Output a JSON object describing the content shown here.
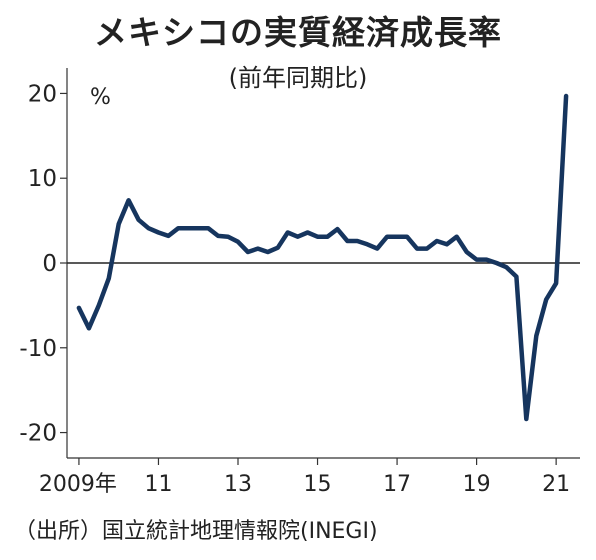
{
  "title": "メキシコの実質経済成長率",
  "subtitle": "(前年同期比)",
  "source": "（出所）国立統計地理情報院(INEGI)",
  "colors": {
    "line": "#16355e",
    "axis": "#333333",
    "zero_line": "#222222",
    "text": "#222222"
  },
  "chart_data": {
    "type": "line",
    "title": "メキシコの実質経済成長率",
    "subtitle": "(前年同期比)",
    "unit_label": "%",
    "xlabel": "",
    "ylabel": "",
    "ylim": [
      -23,
      23
    ],
    "xlim": [
      2008.7,
      2021.6
    ],
    "y_ticks": [
      20,
      10,
      0,
      -10,
      -20
    ],
    "y_tick_labels": [
      "20",
      "10",
      "0",
      "-10",
      "-20"
    ],
    "x_ticks": [
      2009,
      2011,
      2013,
      2015,
      2017,
      2019,
      2021
    ],
    "x_tick_labels": [
      "2009年",
      "11",
      "13",
      "15",
      "17",
      "19",
      "21"
    ],
    "zero_line": true,
    "grid": false,
    "series": [
      {
        "name": "",
        "x": [
          2009.0,
          2009.25,
          2009.5,
          2009.75,
          2010.0,
          2010.25,
          2010.5,
          2010.75,
          2011.0,
          2011.25,
          2011.5,
          2011.75,
          2012.0,
          2012.25,
          2012.5,
          2012.75,
          2013.0,
          2013.25,
          2013.5,
          2013.75,
          2014.0,
          2014.25,
          2014.5,
          2014.75,
          2015.0,
          2015.25,
          2015.5,
          2015.75,
          2016.0,
          2016.25,
          2016.5,
          2016.75,
          2017.0,
          2017.25,
          2017.5,
          2017.75,
          2018.0,
          2018.25,
          2018.5,
          2018.75,
          2019.0,
          2019.25,
          2019.5,
          2019.75,
          2020.0,
          2020.25,
          2020.5,
          2020.75,
          2021.0,
          2021.25
        ],
        "y": [
          -5.3,
          -7.7,
          -5.0,
          -1.8,
          4.6,
          7.4,
          5.1,
          4.1,
          3.6,
          3.2,
          4.1,
          4.1,
          4.1,
          4.1,
          3.2,
          3.1,
          2.5,
          1.3,
          1.7,
          1.3,
          1.8,
          3.6,
          3.1,
          3.6,
          3.1,
          3.1,
          4.0,
          2.6,
          2.6,
          2.2,
          1.7,
          3.1,
          3.1,
          3.1,
          1.7,
          1.7,
          2.6,
          2.2,
          3.1,
          1.3,
          0.4,
          0.4,
          0.0,
          -0.5,
          -1.6,
          -18.4,
          -8.6,
          -4.3,
          -2.4,
          19.7
        ]
      }
    ]
  }
}
